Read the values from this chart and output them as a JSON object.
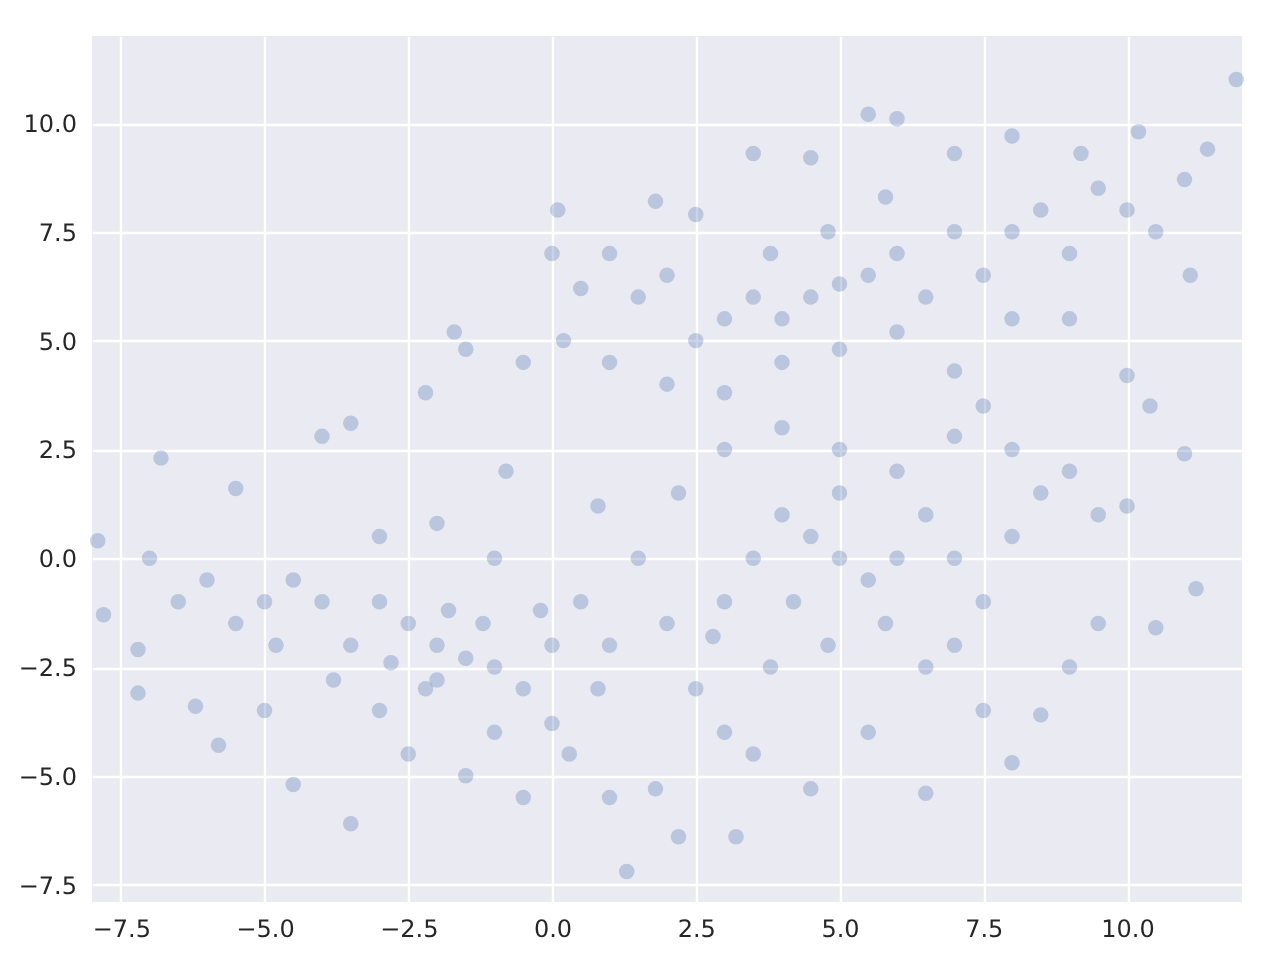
{
  "chart_data": {
    "type": "scatter",
    "x": [
      -2.5,
      -2,
      -1.5,
      -3,
      -3.5,
      -1,
      -0.5,
      0,
      -2.2,
      -4,
      -4.5,
      -5,
      -5.5,
      -6,
      -6.5,
      -7,
      -7.2,
      -6.8,
      -5.5,
      -4,
      -3.5,
      -3,
      -2,
      -1,
      0.5,
      0.8,
      0.3,
      -0.5,
      -1.5,
      -2.5,
      -3.5,
      -4.5,
      -5.8,
      -6.2,
      -5,
      -3,
      -1,
      0,
      1,
      -2,
      -1.8,
      -2.8,
      -3.8,
      -4.8,
      -1.2,
      -0.2,
      -0.8,
      -1.7,
      -2.2,
      -7.9,
      -7.8,
      -7.2,
      5,
      4.5,
      5.5,
      4,
      3.5,
      3,
      6,
      6.5,
      7,
      7.5,
      8,
      8.5,
      9,
      9.5,
      10,
      10.5,
      11,
      11.4,
      11.1,
      10.2,
      9.2,
      8,
      7,
      6,
      5.5,
      4.5,
      3.5,
      2.5,
      1.8,
      1,
      0.5,
      0,
      0.2,
      -0.5,
      -1.5,
      1,
      2,
      2.5,
      3,
      4,
      5,
      6,
      7,
      8,
      9,
      10,
      10.4,
      11.9,
      4.8,
      5.8,
      3.8,
      2,
      1.5,
      0.1,
      5,
      4.5,
      5.5,
      6,
      4,
      3.5,
      3,
      6.5,
      7,
      7.5,
      8,
      8.5,
      9,
      9.5,
      10,
      10.5,
      11.2,
      11,
      9.5,
      9,
      8.5,
      8,
      7.5,
      6.5,
      5.5,
      4.5,
      3.5,
      3.2,
      2.2,
      1.3,
      1.8,
      2.5,
      2,
      1.5,
      2.2,
      3,
      4,
      5,
      6,
      7,
      7.5,
      8,
      5.8,
      4.8,
      3.8,
      6.5,
      7,
      5,
      3,
      1,
      0.8,
      2.8,
      4.2
    ],
    "values": [
      -1.5,
      -2,
      -2.3,
      -1,
      -2,
      -2.5,
      -3,
      -2,
      -3,
      -1,
      -0.5,
      -1,
      -1.5,
      -0.5,
      -1,
      0,
      -2.1,
      2.3,
      1.6,
      2.8,
      3.1,
      0.5,
      0.8,
      0,
      -1,
      -3,
      -4.5,
      -5.5,
      -5,
      -4.5,
      -6.1,
      -5.2,
      -4.3,
      -3.4,
      -3.5,
      -3.5,
      -4,
      -3.8,
      -5.5,
      -2.8,
      -1.2,
      -2.4,
      -2.8,
      -2,
      -1.5,
      -1.2,
      2,
      5.2,
      3.8,
      0.4,
      -1.3,
      -3.1,
      6.3,
      6,
      6.5,
      5.5,
      6,
      5.5,
      7,
      6,
      7.5,
      6.5,
      7.5,
      8,
      7,
      8.5,
      8,
      7.5,
      8.7,
      9.4,
      6.5,
      9.8,
      9.3,
      9.7,
      9.3,
      10.1,
      10.2,
      9.2,
      9.3,
      7.9,
      8.2,
      7,
      6.2,
      7,
      5,
      4.5,
      4.8,
      4.5,
      4,
      5,
      3.8,
      4.5,
      4.8,
      5.2,
      4.3,
      5.5,
      5.5,
      4.2,
      3.5,
      11,
      7.5,
      8.3,
      7,
      6.5,
      6,
      8,
      0,
      0.5,
      -0.5,
      0,
      1,
      0,
      -1,
      1,
      0,
      -1,
      0.5,
      1.5,
      2,
      1,
      1.2,
      -1.6,
      -0.7,
      2.4,
      -1.5,
      -2.5,
      -3.6,
      -4.7,
      -3.5,
      -5.4,
      -4,
      -5.3,
      -4.5,
      -6.4,
      -6.4,
      -7.2,
      -5.3,
      -3,
      -1.5,
      0,
      1.5,
      2.5,
      3,
      2.5,
      2,
      2.8,
      3.5,
      2.5,
      -1.5,
      -2,
      -2.5,
      -2.5,
      -2,
      1.5,
      -4,
      -2,
      1.2,
      -1.8,
      -1
    ],
    "color": "#4c72b0",
    "marker": "circle",
    "grid": true,
    "xlim": [
      -8.0,
      12.0
    ],
    "ylim": [
      -7.9,
      12.0
    ],
    "xticks": [
      {
        "value": -7.5,
        "label": "−7.5"
      },
      {
        "value": -5,
        "label": "−5.0"
      },
      {
        "value": -2.5,
        "label": "−2.5"
      },
      {
        "value": 0,
        "label": "0.0"
      },
      {
        "value": 2.5,
        "label": "2.5"
      },
      {
        "value": 5,
        "label": "5.0"
      },
      {
        "value": 7.5,
        "label": "7.5"
      },
      {
        "value": 10,
        "label": "10.0"
      }
    ],
    "yticks": [
      {
        "value": -7.5,
        "label": "−7.5"
      },
      {
        "value": -5,
        "label": "−5.0"
      },
      {
        "value": -2.5,
        "label": "−2.5"
      },
      {
        "value": 0,
        "label": "0.0"
      },
      {
        "value": 2.5,
        "label": "2.5"
      },
      {
        "value": 5,
        "label": "5.0"
      },
      {
        "value": 7.5,
        "label": "7.5"
      },
      {
        "value": 10,
        "label": "10.0"
      }
    ]
  }
}
